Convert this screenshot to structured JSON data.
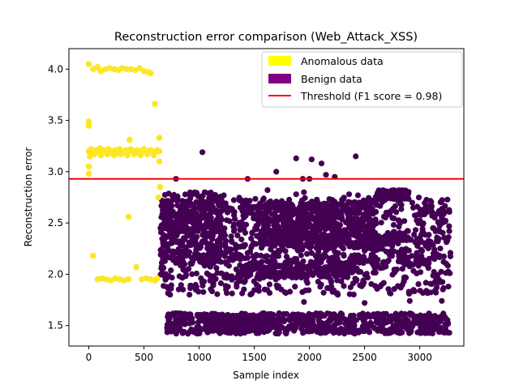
{
  "chart_data": {
    "type": "scatter",
    "title": "Reconstruction error comparison (Web_Attack_XSS)",
    "xlabel": "Sample index",
    "ylabel": "Reconstruction error",
    "xlim": [
      -180,
      3400
    ],
    "ylim": [
      1.3,
      4.2
    ],
    "xticks": [
      0,
      500,
      1000,
      1500,
      2000,
      2500,
      3000
    ],
    "yticks": [
      1.5,
      2.0,
      2.5,
      3.0,
      3.5,
      4.0
    ],
    "xtick_labels": [
      "0",
      "500",
      "1000",
      "1500",
      "2000",
      "2500",
      "3000"
    ],
    "ytick_labels": [
      "1.5",
      "2.0",
      "2.5",
      "3.0",
      "3.5",
      "4.0"
    ],
    "grid": false,
    "legend_position": "top-right",
    "threshold": {
      "label": "Threshold (F1 score = 0.98)",
      "value": 2.93,
      "color": "#ff0000"
    },
    "series": [
      {
        "name": "Anomalous data",
        "color": "#fde725",
        "points": [
          [
            0,
            4.05
          ],
          [
            40,
            4.0
          ],
          [
            80,
            4.02
          ],
          [
            110,
            3.98
          ],
          [
            150,
            4.0
          ],
          [
            190,
            4.01
          ],
          [
            230,
            4.0
          ],
          [
            270,
            3.99
          ],
          [
            300,
            4.01
          ],
          [
            340,
            4.0
          ],
          [
            380,
            4.0
          ],
          [
            420,
            3.99
          ],
          [
            460,
            4.01
          ],
          [
            500,
            3.98
          ],
          [
            540,
            3.97
          ],
          [
            560,
            3.96
          ],
          [
            0,
            3.49
          ],
          [
            0,
            3.45
          ],
          [
            600,
            3.66
          ],
          [
            640,
            3.33
          ],
          [
            370,
            3.31
          ],
          [
            0,
            3.2
          ],
          [
            20,
            3.22
          ],
          [
            40,
            3.19
          ],
          [
            60,
            3.21
          ],
          [
            80,
            3.2
          ],
          [
            100,
            3.23
          ],
          [
            120,
            3.18
          ],
          [
            140,
            3.21
          ],
          [
            160,
            3.2
          ],
          [
            180,
            3.22
          ],
          [
            200,
            3.19
          ],
          [
            220,
            3.2
          ],
          [
            240,
            3.21
          ],
          [
            260,
            3.18
          ],
          [
            280,
            3.22
          ],
          [
            300,
            3.2
          ],
          [
            320,
            3.19
          ],
          [
            340,
            3.21
          ],
          [
            360,
            3.2
          ],
          [
            380,
            3.22
          ],
          [
            400,
            3.19
          ],
          [
            420,
            3.2
          ],
          [
            440,
            3.21
          ],
          [
            460,
            3.18
          ],
          [
            480,
            3.2
          ],
          [
            500,
            3.22
          ],
          [
            520,
            3.19
          ],
          [
            540,
            3.2
          ],
          [
            560,
            3.21
          ],
          [
            580,
            3.2
          ],
          [
            600,
            3.19
          ],
          [
            620,
            3.21
          ],
          [
            640,
            3.2
          ],
          [
            10,
            3.15
          ],
          [
            50,
            3.17
          ],
          [
            110,
            3.16
          ],
          [
            170,
            3.17
          ],
          [
            230,
            3.16
          ],
          [
            290,
            3.17
          ],
          [
            350,
            3.16
          ],
          [
            410,
            3.17
          ],
          [
            470,
            3.16
          ],
          [
            530,
            3.17
          ],
          [
            590,
            3.16
          ],
          [
            0,
            3.05
          ],
          [
            0,
            2.98
          ],
          [
            640,
            3.1
          ],
          [
            645,
            2.85
          ],
          [
            630,
            2.75
          ],
          [
            360,
            2.56
          ],
          [
            40,
            2.18
          ],
          [
            430,
            2.07
          ],
          [
            80,
            1.95
          ],
          [
            120,
            1.96
          ],
          [
            160,
            1.95
          ],
          [
            200,
            1.94
          ],
          [
            240,
            1.96
          ],
          [
            280,
            1.95
          ],
          [
            320,
            1.94
          ],
          [
            360,
            1.95
          ],
          [
            480,
            1.95
          ],
          [
            520,
            1.96
          ],
          [
            560,
            1.95
          ],
          [
            600,
            1.94
          ],
          [
            620,
            1.96
          ]
        ]
      },
      {
        "name": "Benign data",
        "color": "#440154",
        "points": [
          [
            1030,
            3.19
          ],
          [
            1880,
            3.13
          ],
          [
            2020,
            3.12
          ],
          [
            2110,
            3.08
          ],
          [
            2420,
            3.15
          ],
          [
            1700,
            3.0
          ],
          [
            2150,
            2.97
          ],
          [
            2230,
            2.95
          ],
          [
            2000,
            2.93
          ],
          [
            790,
            2.93
          ],
          [
            1440,
            2.93
          ],
          [
            1940,
            2.93
          ],
          [
            1950,
            2.8
          ],
          [
            1880,
            2.78
          ],
          [
            1620,
            2.82
          ],
          [
            2440,
            2.77
          ],
          [
            2360,
            2.78
          ],
          [
            1950,
            1.73
          ],
          [
            2500,
            1.72
          ],
          [
            2910,
            1.74
          ],
          [
            3200,
            1.74
          ],
          [
            1740,
            1.56
          ],
          [
            1420,
            1.56
          ]
        ],
        "bands": [
          {
            "x": [
              650,
              3280
            ],
            "y": [
              2.1,
              2.75
            ],
            "density": 900
          },
          {
            "x": [
              650,
              1250
            ],
            "y": [
              2.15,
              2.8
            ],
            "density": 260
          },
          {
            "x": [
              1500,
              2600
            ],
            "y": [
              2.25,
              2.7
            ],
            "density": 500
          },
          {
            "x": [
              2600,
              2900
            ],
            "y": [
              2.73,
              2.82
            ],
            "density": 120
          },
          {
            "x": [
              2600,
              2900
            ],
            "y": [
              2.33,
              2.36
            ],
            "density": 80
          },
          {
            "x": [
              650,
              3280
            ],
            "y": [
              1.8,
              2.2
            ],
            "density": 360
          },
          {
            "x": [
              1350,
              2400
            ],
            "y": [
              1.97,
              2.09
            ],
            "density": 220
          },
          {
            "x": [
              700,
              3280
            ],
            "y": [
              1.42,
              1.62
            ],
            "density": 650
          },
          {
            "x": [
              1050,
              1650
            ],
            "y": [
              1.44,
              1.6
            ],
            "density": 320
          }
        ]
      }
    ]
  }
}
